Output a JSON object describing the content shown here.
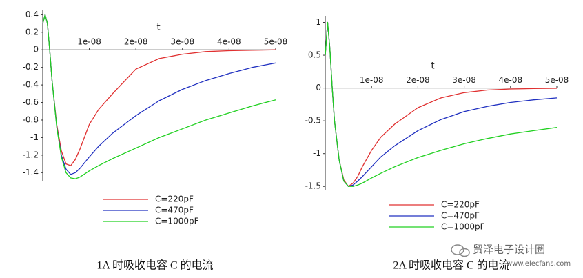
{
  "chart_data": [
    {
      "type": "line",
      "x_label": "t",
      "caption": "1A 时吸收电容 C 的电流",
      "x": [
        0,
        5e-10,
        1e-09,
        1.5e-09,
        2e-09,
        3e-09,
        4e-09,
        5e-09,
        6e-09,
        7e-09,
        8e-09,
        1e-08,
        1.2e-08,
        1.5e-08,
        2e-08,
        2.5e-08,
        3e-08,
        3.5e-08,
        4e-08,
        4.5e-08,
        5e-08
      ],
      "series": [
        {
          "name": "C=220pF",
          "color": "#e03030",
          "values": [
            0.3,
            0.4,
            0.3,
            0,
            -0.35,
            -0.85,
            -1.15,
            -1.3,
            -1.32,
            -1.25,
            -1.13,
            -0.85,
            -0.68,
            -0.5,
            -0.22,
            -0.1,
            -0.05,
            -0.02,
            -0.01,
            -0.005,
            0
          ]
        },
        {
          "name": "C=470pF",
          "color": "#2030c0",
          "values": [
            0.3,
            0.4,
            0.3,
            0,
            -0.35,
            -0.87,
            -1.2,
            -1.36,
            -1.42,
            -1.4,
            -1.35,
            -1.22,
            -1.1,
            -0.95,
            -0.75,
            -0.58,
            -0.45,
            -0.35,
            -0.27,
            -0.2,
            -0.15
          ]
        },
        {
          "name": "C=1000pF",
          "color": "#20d020",
          "values": [
            0.3,
            0.4,
            0.3,
            0,
            -0.35,
            -0.88,
            -1.22,
            -1.4,
            -1.46,
            -1.47,
            -1.45,
            -1.38,
            -1.32,
            -1.24,
            -1.12,
            -1.0,
            -0.9,
            -0.8,
            -0.72,
            -0.64,
            -0.57
          ]
        }
      ],
      "xlim": [
        0,
        5e-08
      ],
      "xticks": [
        {
          "value": 1e-08,
          "label": "1e-08"
        },
        {
          "value": 2e-08,
          "label": "2e-08"
        },
        {
          "value": 3e-08,
          "label": "3e-08"
        },
        {
          "value": 4e-08,
          "label": "4e-08"
        },
        {
          "value": 5e-08,
          "label": "5e-08"
        }
      ],
      "ylim": [
        -1.5,
        0.45
      ],
      "yticks": [
        0.4,
        0.2,
        0,
        -0.2,
        -0.4,
        -0.6,
        -0.8,
        -1,
        -1.2,
        -1.4
      ]
    },
    {
      "type": "line",
      "x_label": "t",
      "caption": "2A 时吸收电容 C 的电流",
      "x": [
        0,
        5e-10,
        1e-09,
        1.5e-09,
        2e-09,
        3e-09,
        4e-09,
        5e-09,
        6e-09,
        7e-09,
        8e-09,
        1e-08,
        1.2e-08,
        1.5e-08,
        2e-08,
        2.5e-08,
        3e-08,
        3.5e-08,
        4e-08,
        4.5e-08,
        5e-08
      ],
      "series": [
        {
          "name": "C=220pF",
          "color": "#e03030",
          "values": [
            0.5,
            1.0,
            0.6,
            0,
            -0.5,
            -1.1,
            -1.4,
            -1.5,
            -1.45,
            -1.35,
            -1.2,
            -0.95,
            -0.75,
            -0.55,
            -0.3,
            -0.15,
            -0.07,
            -0.03,
            -0.015,
            -0.008,
            -0.004
          ]
        },
        {
          "name": "C=470pF",
          "color": "#2030c0",
          "values": [
            0.5,
            1.0,
            0.6,
            0,
            -0.5,
            -1.1,
            -1.42,
            -1.5,
            -1.48,
            -1.42,
            -1.35,
            -1.2,
            -1.05,
            -0.88,
            -0.65,
            -0.48,
            -0.36,
            -0.28,
            -0.22,
            -0.18,
            -0.15
          ]
        },
        {
          "name": "C=1000pF",
          "color": "#20d020",
          "values": [
            0.5,
            1.0,
            0.6,
            0,
            -0.5,
            -1.1,
            -1.42,
            -1.5,
            -1.5,
            -1.48,
            -1.45,
            -1.37,
            -1.3,
            -1.2,
            -1.06,
            -0.95,
            -0.85,
            -0.77,
            -0.7,
            -0.65,
            -0.6
          ]
        }
      ],
      "xlim": [
        0,
        5e-08
      ],
      "xticks": [
        {
          "value": 1e-08,
          "label": "1e-08"
        },
        {
          "value": 2e-08,
          "label": "2e-08"
        },
        {
          "value": 3e-08,
          "label": "3e-08"
        },
        {
          "value": 4e-08,
          "label": "4e-08"
        },
        {
          "value": 5e-08,
          "label": "5e-08"
        }
      ],
      "ylim": [
        -1.55,
        1.1
      ],
      "yticks": [
        1,
        0.5,
        0,
        -0.5,
        -1,
        -1.5
      ]
    }
  ],
  "watermark": {
    "name": "贸泽电子设计圈",
    "site": "www.elecfans.com"
  }
}
